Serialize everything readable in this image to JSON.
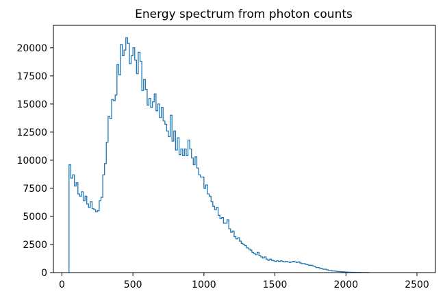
{
  "chart_data": {
    "type": "histogram",
    "title": "Energy spectrum from photon counts",
    "xlabel": "",
    "ylabel": "",
    "xlim": [
      -60,
      2630
    ],
    "ylim": [
      0,
      22000
    ],
    "x_ticks": [
      0,
      500,
      1000,
      1500,
      2000,
      2500
    ],
    "y_ticks": [
      0,
      2500,
      5000,
      7500,
      10000,
      12500,
      15000,
      17500,
      20000
    ],
    "x_tick_labels": [
      "0",
      "500",
      "1000",
      "1500",
      "2000",
      "2500"
    ],
    "y_tick_labels": [
      "0",
      "2500",
      "5000",
      "7500",
      "10000",
      "12500",
      "15000",
      "17500",
      "20000"
    ],
    "grid": false,
    "series_color": "#1f77b4",
    "bin_start": 50,
    "bin_width": 12.5,
    "counts": [
      9600,
      8400,
      8700,
      7700,
      8000,
      7000,
      6800,
      7200,
      6400,
      6800,
      6100,
      5800,
      6300,
      5700,
      5600,
      5400,
      5500,
      6400,
      6700,
      8700,
      9700,
      11600,
      13900,
      13700,
      15400,
      15300,
      15800,
      18500,
      17600,
      20300,
      19300,
      19800,
      20900,
      20400,
      18600,
      19300,
      20000,
      18900,
      17700,
      19600,
      18800,
      16200,
      17200,
      16300,
      14900,
      15500,
      14700,
      15200,
      15900,
      14400,
      15000,
      13800,
      14700,
      13500,
      13200,
      12600,
      12100,
      14000,
      11700,
      12600,
      10900,
      12000,
      10500,
      11000,
      10400,
      11000,
      10400,
      11800,
      11000,
      10200,
      9600,
      10300,
      9300,
      8700,
      8500,
      8500,
      7500,
      7800,
      7000,
      6800,
      6300,
      5900,
      5600,
      5800,
      5100,
      4800,
      4900,
      4400,
      4400,
      4700,
      3900,
      3600,
      3700,
      3200,
      3000,
      3100,
      2800,
      2600,
      2500,
      2400,
      2200,
      2100,
      2000,
      1800,
      1700,
      1600,
      1800,
      1500,
      1400,
      1300,
      1400,
      1200,
      1100,
      1200,
      1100,
      1050,
      1000,
      1050,
      1000,
      1050,
      1000,
      950,
      1000,
      950,
      900,
      950,
      1000,
      950,
      900,
      950,
      850,
      800,
      800,
      750,
      700,
      650,
      650,
      600,
      550,
      450,
      450,
      400,
      350,
      300,
      300,
      250,
      200,
      200,
      150,
      150,
      120,
      100,
      90,
      80,
      70,
      60,
      50,
      40,
      40,
      30,
      30,
      25,
      20,
      20,
      15,
      10,
      10,
      10,
      5
    ]
  }
}
